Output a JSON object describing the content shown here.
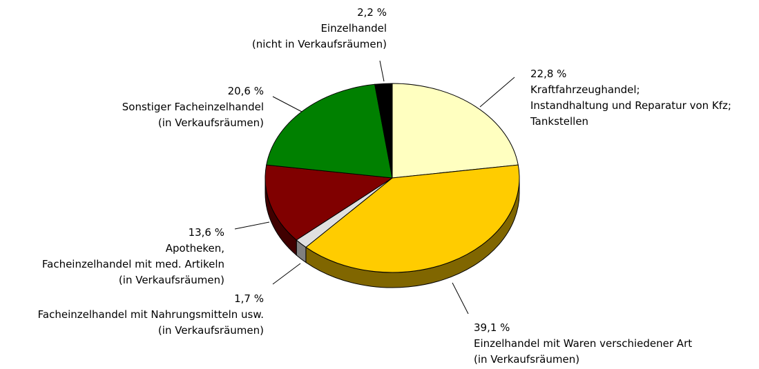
{
  "chart_data": {
    "type": "pie",
    "categories": [
      [
        "Kraftfahrzeughandel;",
        "Instandhaltung und Reparatur von Kfz;",
        "Tankstellen"
      ],
      [
        "Einzelhandel mit Waren verschiedener Art",
        "(in Verkaufsräumen)"
      ],
      [
        "Facheinzelhandel mit Nahrungsmitteln usw.",
        "(in Verkaufsräumen)"
      ],
      [
        "Apotheken,",
        "Facheinzelhandel mit med. Artikeln",
        "(in Verkaufsräumen)"
      ],
      [
        "Sonstiger Facheinzelhandel",
        "(in Verkaufsräumen)"
      ],
      [
        "Einzelhandel",
        "(nicht in Verkaufsräumen)"
      ]
    ],
    "values": [
      22.8,
      39.1,
      1.7,
      13.6,
      20.6,
      2.2
    ],
    "value_labels": [
      "22,8 %",
      "39,1 %",
      "1,7 %",
      "13,6 %",
      "20,6 %",
      "2,2 %"
    ],
    "colors": [
      "#ffffc0",
      "#ffcc00",
      "#e0e0e0",
      "#800000",
      "#008000",
      "#000000"
    ],
    "side_colors": [
      "#808060",
      "#806600",
      "#808080",
      "#400000",
      "#004000",
      "#000000"
    ]
  }
}
